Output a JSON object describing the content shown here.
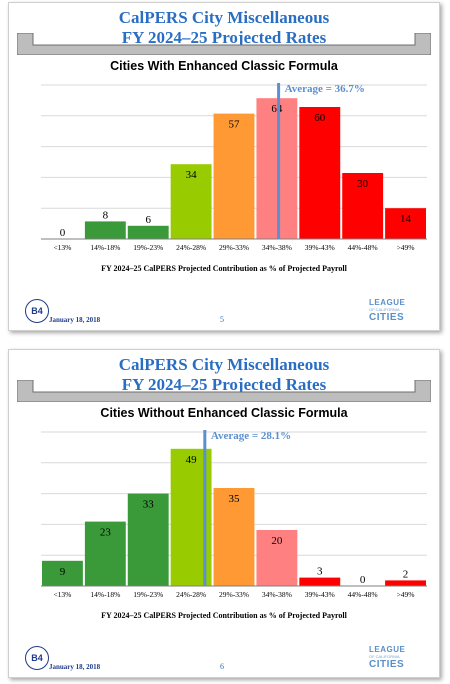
{
  "slides": [
    {
      "title_line1": "CalPERS City Miscellaneous",
      "title_line2": "FY 2024–25 Projected Rates",
      "date": "January 18, 2018",
      "page": "5",
      "logo_left": "B4",
      "logo_right": {
        "line1": "LEAGUE",
        "line2": "OF CALIFORNIA",
        "line3": "CITIES"
      }
    },
    {
      "title_line1": "CalPERS City Miscellaneous",
      "title_line2": "FY 2024–25 Projected Rates",
      "date": "January 18, 2018",
      "page": "6",
      "logo_left": "B4",
      "logo_right": {
        "line1": "LEAGUE",
        "line2": "OF CALIFORNIA",
        "line3": "CITIES"
      }
    }
  ],
  "chart_data": [
    {
      "type": "bar",
      "title": "Cities With Enhanced Classic Formula",
      "xlabel": "FY 2024–25 CalPERS Projected Contribution as % of Projected Payroll",
      "categories": [
        "<13%",
        "14%-18%",
        "19%-23%",
        "24%-28%",
        "29%-33%",
        "34%-38%",
        "39%-43%",
        "44%-48%",
        ">49%"
      ],
      "values": [
        0,
        8,
        6,
        34,
        57,
        64,
        60,
        30,
        14
      ],
      "colors": [
        "#3a9a3a",
        "#3a9a3a",
        "#3a9a3a",
        "#99cc00",
        "#ff9933",
        "#ff8080",
        "#ff0000",
        "#ff0000",
        "#ff0000"
      ],
      "ylim": [
        0,
        70
      ],
      "grid": true,
      "average_label": "Average = 36.7%",
      "average_value": 36.7,
      "average_color": "#5b8fd0"
    },
    {
      "type": "bar",
      "title": "Cities Without Enhanced Classic Formula",
      "xlabel": "FY 2024–25 CalPERS Projected Contribution as % of Projected Payroll",
      "categories": [
        "<13%",
        "14%-18%",
        "19%-23%",
        "24%-28%",
        "29%-33%",
        "34%-38%",
        "39%-43%",
        "44%-48%",
        ">49%"
      ],
      "values": [
        9,
        23,
        33,
        49,
        35,
        20,
        3,
        0,
        2
      ],
      "colors": [
        "#3a9a3a",
        "#3a9a3a",
        "#3a9a3a",
        "#99cc00",
        "#ff9933",
        "#ff8080",
        "#ff0000",
        "#ff0000",
        "#ff0000"
      ],
      "ylim": [
        0,
        55
      ],
      "grid": true,
      "average_label": "Average = 28.1%",
      "average_value": 28.1,
      "average_color": "#5b8fd0"
    }
  ]
}
